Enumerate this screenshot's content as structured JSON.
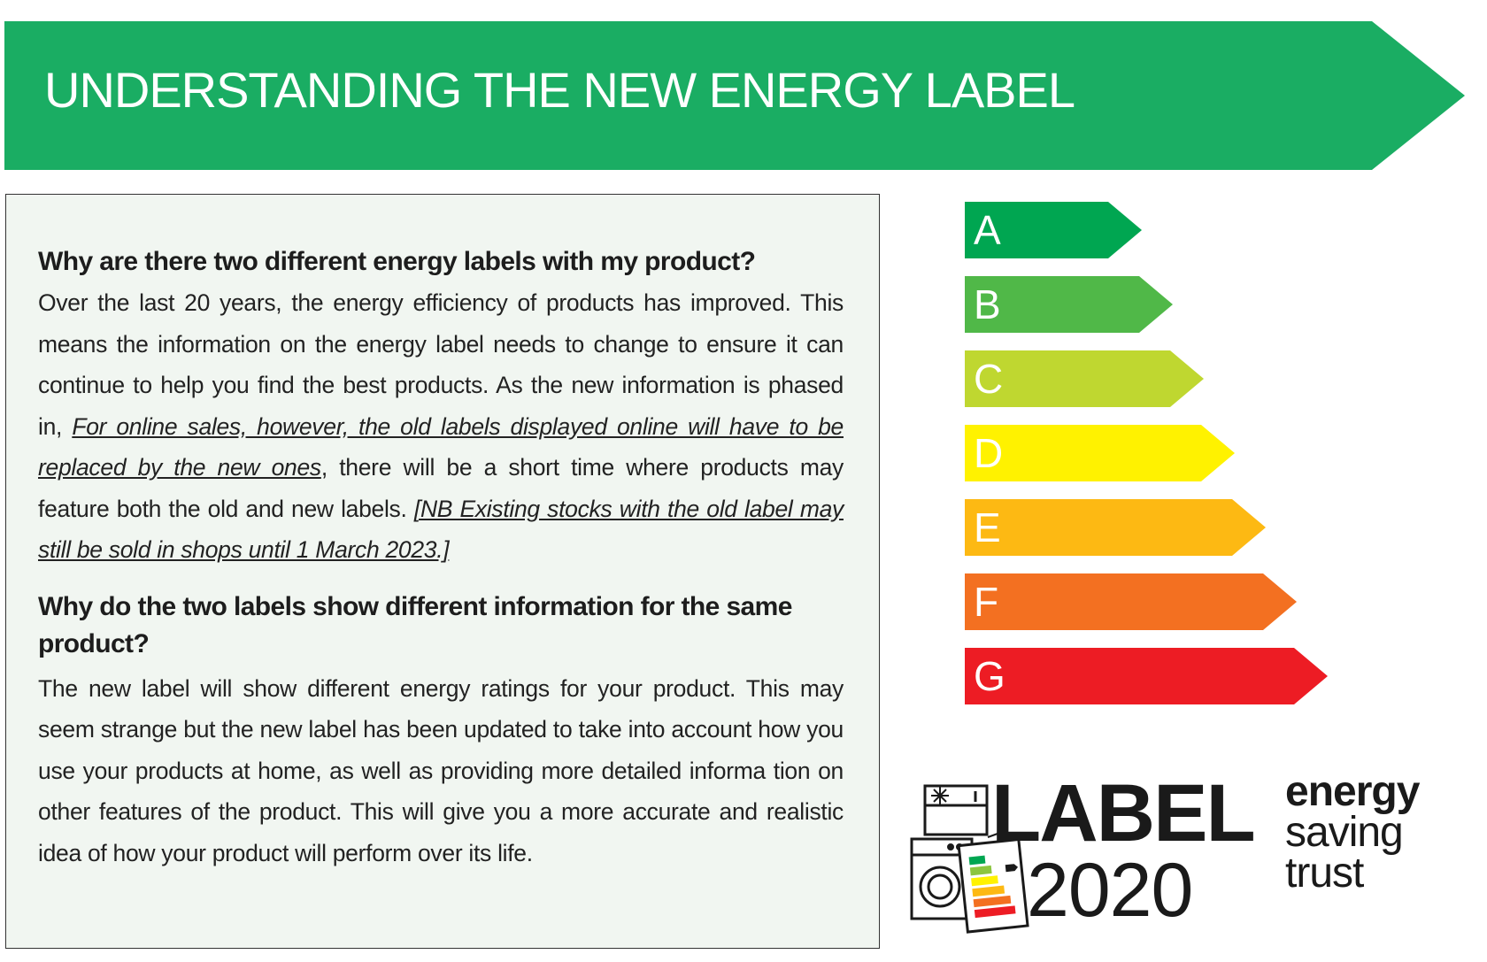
{
  "banner": {
    "title": "UNDERSTANDING THE NEW ENERGY LABEL",
    "color": "#1aad63"
  },
  "section1": {
    "heading": "Why are there two different energy labels with my product?",
    "text_before": "Over the last 20 years, the energy efficiency of products has improved. This means the information on the energy label needs to change to ensure it can continue to help you find the best products. As the new information is phased in, ",
    "emphasis": "For online sales, however, the old labels displayed online will have to be replaced by the new ones",
    "text_after": ", there will be a short time where products may feature both the old and new labels.  ",
    "note": "[NB Existing stocks with the old label may still be sold in shops until 1 March 2023.]"
  },
  "section2": {
    "heading": "Why do the two labels show different information for the same product?",
    "text": "The new label will show different energy ratings for your product. This may seem strange but the new label has been updated to take into account how you use your products at home, as well as providing more detailed informa tion on other features of the product. This will give you a more accurate and realistic idea of how your product will perform over its life."
  },
  "energy_scale": [
    {
      "letter": "A",
      "color": "#00a651"
    },
    {
      "letter": "B",
      "color": "#50b848"
    },
    {
      "letter": "C",
      "color": "#bfd730"
    },
    {
      "letter": "D",
      "color": "#fff200"
    },
    {
      "letter": "E",
      "color": "#fdb913"
    },
    {
      "letter": "F",
      "color": "#f37021"
    },
    {
      "letter": "G",
      "color": "#ed1c24"
    }
  ],
  "logos": {
    "label_word": "LABEL",
    "year": "2020",
    "trust_line1": "energy",
    "trust_line2": "saving",
    "trust_line3": "trust"
  }
}
